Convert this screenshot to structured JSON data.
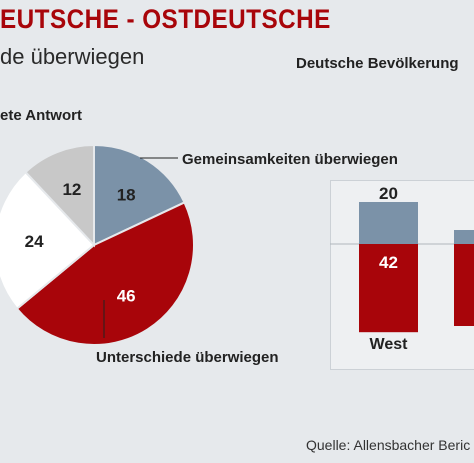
{
  "header": {
    "title": "EUTSCHE - OSTDEUTSCHE",
    "subtitle": "de überwiegen",
    "right_heading": "Deutsche Bevölkerung",
    "pie_heading": "ete Antwort"
  },
  "source": "Quelle: Allensbacher Beric",
  "colors": {
    "blue_grey": "#7b92a8",
    "red": "#a8050a",
    "light_grey": "#c8c8c8",
    "white": "#ffffff",
    "title_red": "#a8050a"
  },
  "chart_data": [
    {
      "type": "pie",
      "title": "",
      "slices": [
        {
          "label": "Gemeinsamkeiten überwiegen",
          "value": 18,
          "color": "#7b92a8"
        },
        {
          "label": "Unterschiede überwiegen",
          "value": 46,
          "color": "#a8050a"
        },
        {
          "label": "",
          "value": 24,
          "color": "#ffffff"
        },
        {
          "label": "",
          "value": 12,
          "color": "#c8c8c8"
        }
      ]
    },
    {
      "type": "bar",
      "title": "",
      "categories": [
        "West"
      ],
      "series": [
        {
          "values": [
            20
          ],
          "color": "#7b92a8"
        },
        {
          "values": [
            42
          ],
          "color": "#a8050a"
        }
      ]
    }
  ],
  "annotations": {
    "gemeinsam": "Gemeinsamkeiten überwiegen",
    "unterschied": "Unterschiede überwiegen"
  }
}
